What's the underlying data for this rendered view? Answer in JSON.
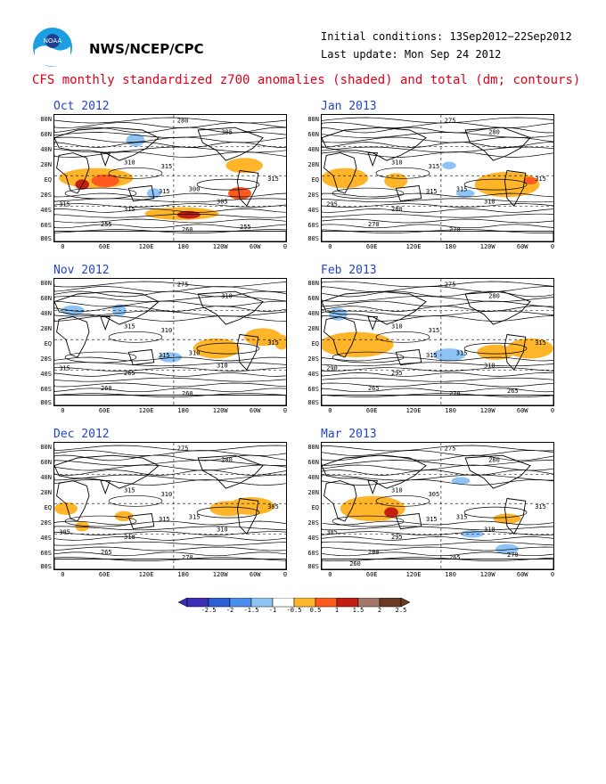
{
  "header": {
    "org": "NWS/NCEP/CPC",
    "init_label": "Initial conditions: 13Sep2012−22Sep2012",
    "update_label": "Last update: Mon Sep 24 2012",
    "title": "CFS monthly standardized z700 anomalies (shaded) and total (dm; contours)",
    "logo_text": "NOAA"
  },
  "axes": {
    "lat_labels": [
      "80N",
      "60N",
      "40N",
      "20N",
      "EQ",
      "20S",
      "40S",
      "60S",
      "80S"
    ],
    "lon_labels": [
      "0",
      "60E",
      "120E",
      "180",
      "120W",
      "60W",
      "0"
    ]
  },
  "panels": [
    {
      "title": "Oct 2012",
      "contour_labels": [
        "280",
        "305",
        "310",
        "315",
        "315",
        "315",
        "300",
        "305",
        "315",
        "315",
        "255",
        "260",
        "255"
      ]
    },
    {
      "title": "Nov 2012",
      "contour_labels": [
        "275",
        "310",
        "315",
        "310",
        "315",
        "315",
        "310",
        "310",
        "315",
        "265",
        "260",
        "260"
      ]
    },
    {
      "title": "Dec 2012",
      "contour_labels": [
        "275",
        "280",
        "315",
        "310",
        "305",
        "315",
        "315",
        "310",
        "305",
        "310",
        "265",
        "270"
      ]
    },
    {
      "title": "Jan 2013",
      "contour_labels": [
        "275",
        "280",
        "310",
        "315",
        "315",
        "315",
        "315",
        "310",
        "295",
        "280",
        "270",
        "270"
      ]
    },
    {
      "title": "Feb 2013",
      "contour_labels": [
        "275",
        "280",
        "310",
        "315",
        "315",
        "315",
        "315",
        "310",
        "290",
        "295",
        "265",
        "270",
        "265"
      ]
    },
    {
      "title": "Mar 2013",
      "contour_labels": [
        "275",
        "280",
        "310",
        "305",
        "315",
        "315",
        "315",
        "310",
        "305",
        "295",
        "280",
        "265",
        "270",
        "260"
      ]
    }
  ],
  "legend": {
    "levels": [
      "-2.5",
      "-2",
      "-1.5",
      "-1",
      "-0.5",
      "0.5",
      "1",
      "1.5",
      "2",
      "2.5"
    ],
    "colors": [
      "#3b2fb8",
      "#2c5ed6",
      "#4a8ff0",
      "#8ec4f5",
      "#ffffff",
      "#ffb52a",
      "#ff5a1e",
      "#c41d12",
      "#a3786a",
      "#6b3a24"
    ]
  }
}
